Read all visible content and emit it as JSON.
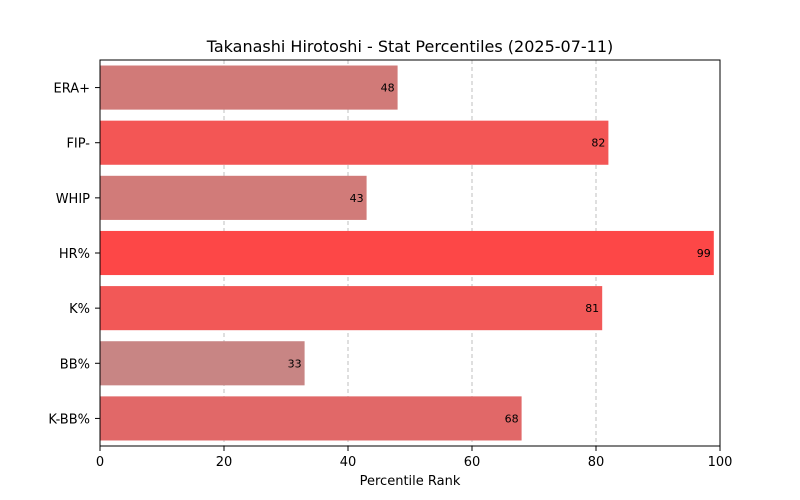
{
  "chart_data": {
    "type": "bar",
    "orientation": "horizontal",
    "title": "Takanashi Hirotoshi - Stat Percentiles (2025-07-11)",
    "xlabel": "Percentile Rank",
    "ylabel": "",
    "xlim": [
      0,
      100
    ],
    "xticks": [
      0,
      20,
      40,
      60,
      80,
      100
    ],
    "grid": "x-dashed",
    "categories": [
      "ERA+",
      "FIP-",
      "WHIP",
      "HR%",
      "K%",
      "BB%",
      "K-BB%"
    ],
    "values": [
      48,
      82,
      43,
      99,
      81,
      33,
      68
    ],
    "bar_colors": [
      "#d17a78",
      "#f35655",
      "#d17b79",
      "#fd4747",
      "#f25857",
      "#c88584",
      "#e16868"
    ]
  }
}
